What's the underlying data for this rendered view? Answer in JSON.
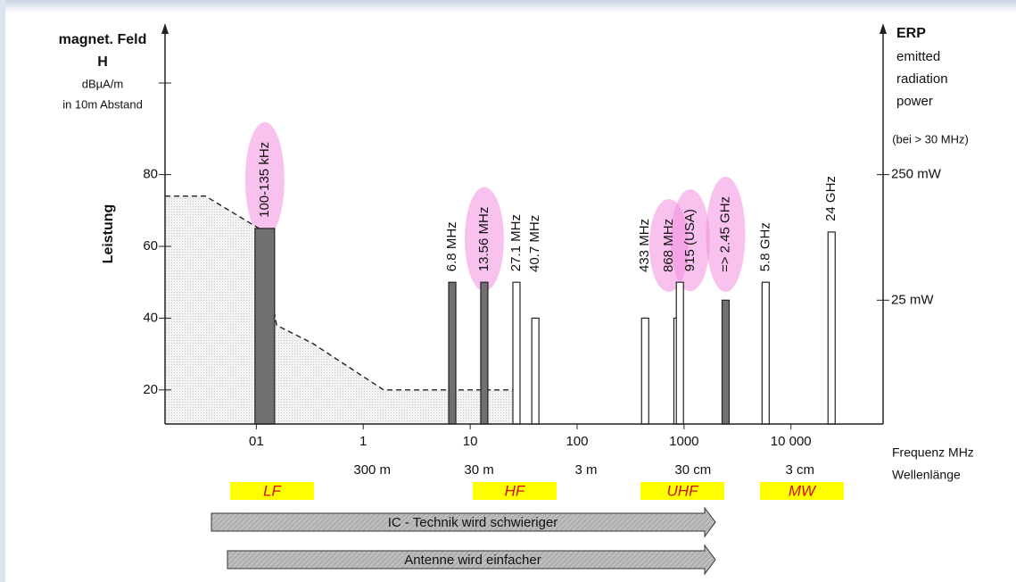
{
  "chart_data": {
    "type": "bar",
    "left_axis_title": [
      "magnet. Feld",
      "H",
      "dBµA/m",
      "in 10m Abstand"
    ],
    "ylabel": "Leistung",
    "right_axis_title": [
      "ERP",
      "emitted",
      "radiation",
      "power"
    ],
    "right_note": "(bei > 30 MHz)",
    "xlabel": "Frequenz MHz",
    "wavelength_title": "Wellenlänge",
    "x": [
      0.12,
      6.8,
      13.56,
      27.1,
      40.7,
      433,
      868,
      915,
      2450,
      5800,
      24000
    ],
    "values": [
      65,
      50,
      50,
      50,
      40,
      40,
      40,
      50,
      45,
      50,
      64
    ],
    "labels": [
      "100-135 kHz",
      "6.8 MHz",
      "13.56 MHz",
      "27.1 MHz",
      "40.7 MHz",
      "433 MHz",
      "868 MHz",
      "915 (USA)",
      "=> 2.45 GHz",
      "5.8 GHz",
      "24 GHz"
    ],
    "bar_colors": [
      "#707070",
      "#707070",
      "#707070",
      "#ffffff",
      "#ffffff",
      "#ffffff",
      "#ffffff",
      "#ffffff",
      "#707070",
      "#ffffff",
      "#ffffff"
    ],
    "highlighted": [
      true,
      false,
      true,
      false,
      false,
      false,
      true,
      true,
      true,
      false,
      false
    ],
    "highlight_color": "#f28ee0",
    "limit_x": [
      0.014,
      0.0335,
      0.106,
      0.155,
      0.335,
      1.55,
      27.7
    ],
    "limit_values": [
      74,
      74,
      65,
      38,
      33,
      20,
      20
    ],
    "xlim": [
      0.014,
      70000
    ],
    "xlog": true,
    "xticks": [
      {
        "value": 0.1,
        "label": "01"
      },
      1,
      10,
      100,
      1000,
      {
        "value": 10000,
        "label": "10 000"
      }
    ],
    "ylim": [
      10,
      110
    ],
    "yticks": [
      20,
      40,
      60,
      80
    ],
    "y2lim": [
      2.5,
      1800
    ],
    "y2log": true,
    "y2ticks": [
      {
        "value": 250,
        "label": "250 mW"
      },
      {
        "value": 25,
        "label": "25 mW"
      }
    ],
    "wavelength_x": [
      1,
      10,
      100,
      1000,
      10000
    ],
    "wavelength_labels": [
      "300 m",
      "30 m",
      "3 m",
      "30 cm",
      "3 cm"
    ],
    "bands": [
      "LF",
      "HF",
      "UHF",
      "MW"
    ],
    "band_color": "#ffff00",
    "arrows": [
      "IC - Technik wird schwieriger",
      "Antenne wird einfacher"
    ]
  }
}
